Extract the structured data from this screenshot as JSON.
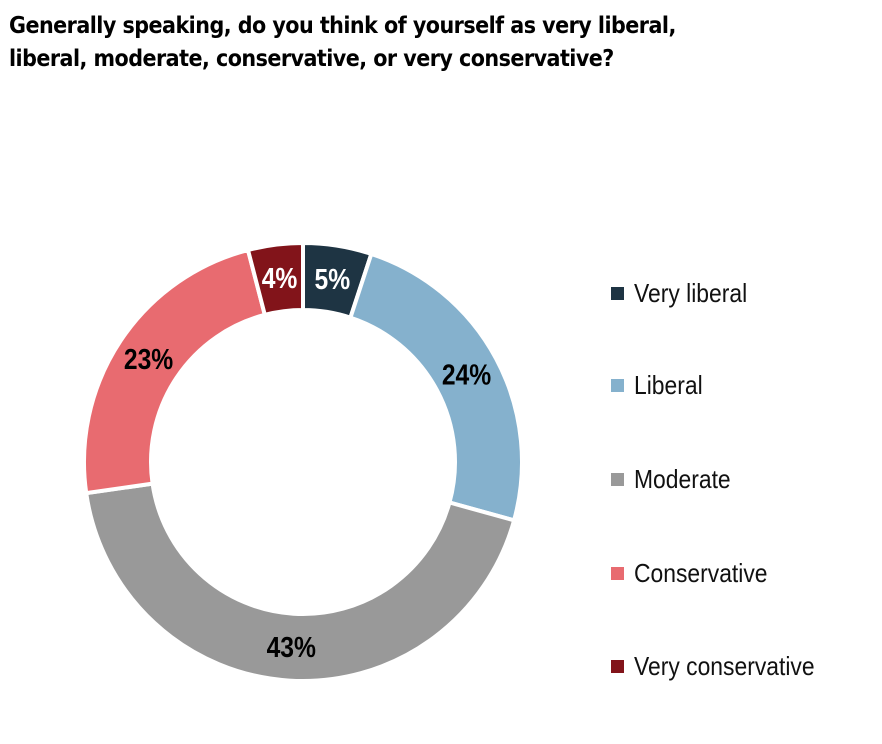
{
  "title": {
    "line1": "Generally speaking, do you think of yourself as very liberal,",
    "line2": "liberal, moderate, conservative, or very conservative?"
  },
  "chart_data": {
    "type": "pie",
    "variant": "donut",
    "title": "Generally speaking, do you think of yourself as very liberal, liberal, moderate, conservative, or very conservative?",
    "categories": [
      "Very liberal",
      "Liberal",
      "Moderate",
      "Conservative",
      "Very conservative"
    ],
    "values": [
      5,
      24,
      43,
      23,
      4
    ],
    "labels": [
      "5%",
      "24%",
      "43%",
      "23%",
      "4%"
    ],
    "colors": [
      "#1e3443",
      "#85b1cd",
      "#999999",
      "#e86b70",
      "#82141a"
    ],
    "label_colors": [
      "#ffffff",
      "#000000",
      "#000000",
      "#000000",
      "#ffffff"
    ],
    "start_angle_deg": 0,
    "direction": "clockwise",
    "legend_position": "right"
  },
  "legend": {
    "items": [
      {
        "label": "Very liberal",
        "color": "#1e3443"
      },
      {
        "label": "Liberal",
        "color": "#85b1cd"
      },
      {
        "label": "Moderate",
        "color": "#999999"
      },
      {
        "label": "Conservative",
        "color": "#e86b70"
      },
      {
        "label": "Very conservative",
        "color": "#82141a"
      }
    ]
  }
}
